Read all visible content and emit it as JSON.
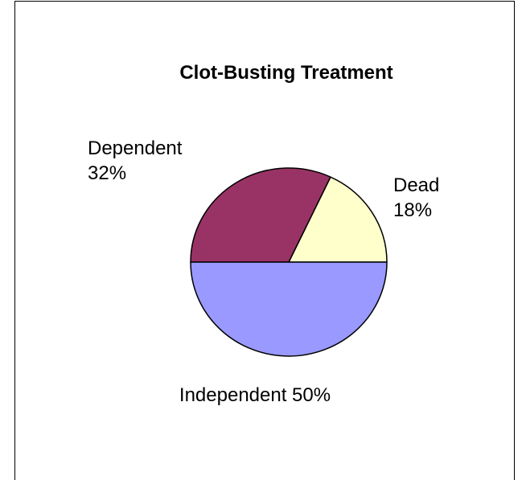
{
  "chart_data": {
    "type": "pie",
    "title": "Clot-Busting Treatment",
    "slices": [
      {
        "label": "Dead",
        "value": 18,
        "color": "#ffffcc"
      },
      {
        "label": "Dependent",
        "value": 32,
        "color": "#993366"
      },
      {
        "label": "Independent",
        "value": 50,
        "color": "#9999ff"
      }
    ],
    "data_labels": [
      {
        "line1": "Dead",
        "line2": "18%"
      },
      {
        "line1": "Dependent",
        "line2": "32%"
      },
      {
        "line1": "Independent 50%"
      }
    ],
    "legend": "none"
  }
}
